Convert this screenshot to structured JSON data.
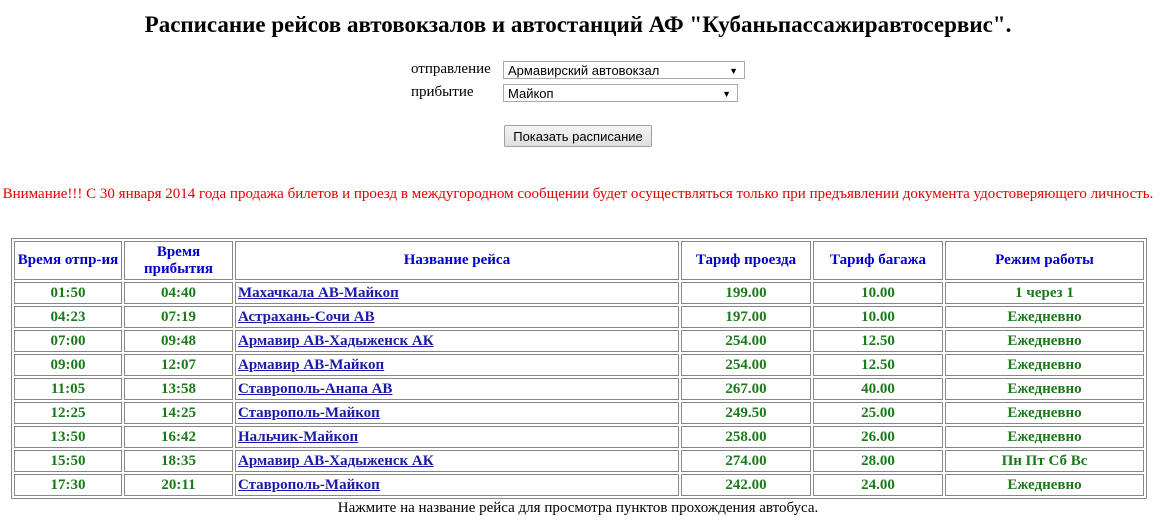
{
  "title": "Расписание рейсов автовокзалов и автостанций АФ \"Кубаньпассажиравтосервис\".",
  "form": {
    "departure_label": "отправление",
    "departure_value": "Армавирский автовокзал",
    "arrival_label": "прибытие",
    "arrival_value": "Майкоп",
    "submit_label": "Показать расписание"
  },
  "warning": "Внимание!!! С 30 января 2014 года продажа билетов и проезд в междугородном сообщении будет осуществляться только при предъявлении документа удостоверяющего личность.",
  "table": {
    "headers": [
      "Время отпр-ия",
      "Время прибытия",
      "Название рейса",
      "Тариф проезда",
      "Тариф багажа",
      "Режим работы"
    ],
    "rows": [
      [
        "01:50",
        "04:40",
        "Махачкала АВ-Майкоп",
        "199.00",
        "10.00",
        "1 через 1"
      ],
      [
        "04:23",
        "07:19",
        "Астрахань-Сочи АВ",
        "197.00",
        "10.00",
        "Ежедневно"
      ],
      [
        "07:00",
        "09:48",
        "Армавир АВ-Хадыженск АК",
        "254.00",
        "12.50",
        "Ежедневно"
      ],
      [
        "09:00",
        "12:07",
        "Армавир АВ-Майкоп",
        "254.00",
        "12.50",
        "Ежедневно"
      ],
      [
        "11:05",
        "13:58",
        "Ставрополь-Анапа АВ",
        "267.00",
        "40.00",
        "Ежедневно"
      ],
      [
        "12:25",
        "14:25",
        "Ставрополь-Майкоп",
        "249.50",
        "25.00",
        "Ежедневно"
      ],
      [
        "13:50",
        "16:42",
        "Нальчик-Майкоп",
        "258.00",
        "26.00",
        "Ежедневно"
      ],
      [
        "15:50",
        "18:35",
        "Армавир АВ-Хадыженск АК",
        "274.00",
        "28.00",
        "Пн Пт Сб Вс"
      ],
      [
        "17:30",
        "20:11",
        "Ставрополь-Майкоп",
        "242.00",
        "24.00",
        "Ежедневно"
      ]
    ]
  },
  "footer": "Нажмите на название рейса для просмотра пунктов прохождения автобуса.",
  "colors": {
    "header_text": "#0000cc",
    "cell_text": "#1a7a1a",
    "link": "#1a1aa6",
    "warning": "#e00000"
  }
}
